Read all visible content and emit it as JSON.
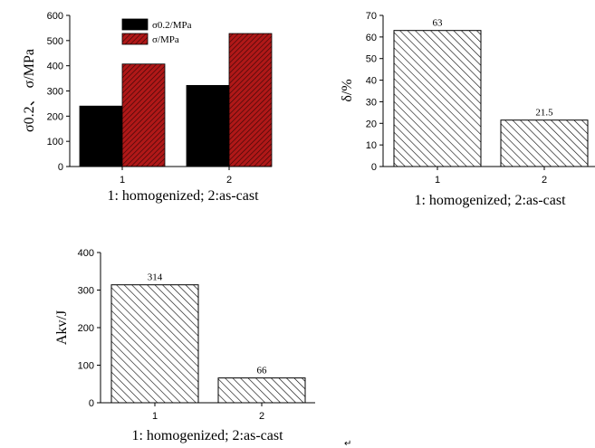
{
  "chart_data": [
    {
      "type": "bar",
      "categories": [
        "1",
        "2"
      ],
      "series": [
        {
          "name": "σ0.2/MPa",
          "values": [
            240,
            322
          ],
          "color": "#000000",
          "pattern": "solid"
        },
        {
          "name": "σ/MPa",
          "values": [
            407,
            528
          ],
          "color": "#b01818",
          "pattern": "crosshatch"
        }
      ],
      "xlabel": "1: homogenized; 2:as-cast",
      "ylabel": "σ0.2、 σ/MPa",
      "ylim": [
        0,
        600
      ],
      "yticks": [
        0,
        100,
        200,
        300,
        400,
        500,
        600
      ],
      "legend": "top-center",
      "grid": false
    },
    {
      "type": "bar",
      "categories": [
        "1",
        "2"
      ],
      "values": [
        63,
        21.5
      ],
      "data_labels": [
        "63",
        "21.5"
      ],
      "pattern": "diagonal-hatch",
      "xlabel": "1: homogenized; 2:as-cast",
      "ylabel": "δ/%",
      "ylim": [
        0,
        70
      ],
      "yticks": [
        0,
        10,
        20,
        30,
        40,
        50,
        60,
        70
      ],
      "grid": false
    },
    {
      "type": "bar",
      "categories": [
        "1",
        "2"
      ],
      "values": [
        314,
        66
      ],
      "data_labels": [
        "314",
        "66"
      ],
      "pattern": "diagonal-hatch",
      "xlabel": "1: homogenized; 2:as-cast",
      "ylabel": "Akv/J",
      "ylim": [
        0,
        400
      ],
      "yticks": [
        0,
        100,
        200,
        300,
        400
      ],
      "grid": false
    }
  ]
}
